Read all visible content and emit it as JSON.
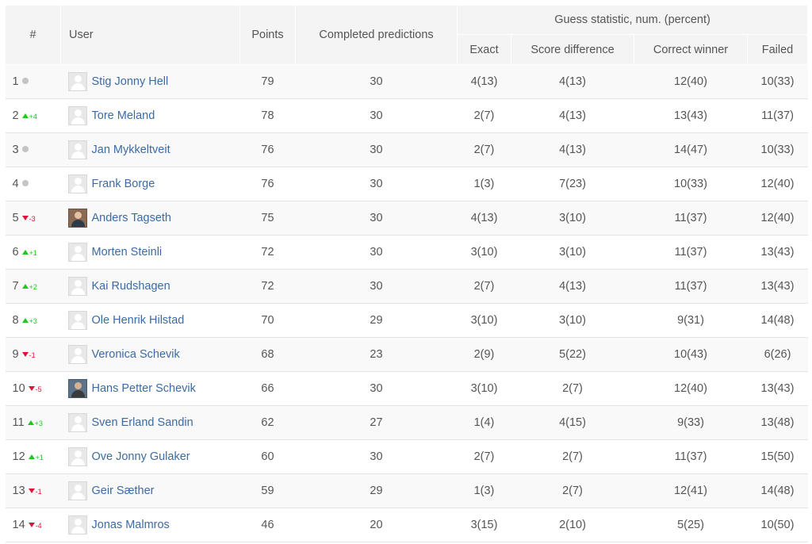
{
  "headers": {
    "rank": "#",
    "user": "User",
    "points": "Points",
    "completed": "Completed predictions",
    "guess_group": "Guess statistic, num. (percent)",
    "exact": "Exact",
    "score_diff": "Score difference",
    "correct_winner": "Correct winner",
    "failed": "Failed"
  },
  "colors": {
    "up": "#1ec91e",
    "down": "#d9163b",
    "same": "#c4c4c4",
    "link": "#3b6ba5"
  },
  "rows": [
    {
      "rank": "1",
      "trend": "same",
      "change": "",
      "avatar": "default-avatar-icon",
      "name": "Stig Jonny Hell",
      "points": "79",
      "completed": "30",
      "exact": "4(13)",
      "score_diff": "4(13)",
      "correct_winner": "12(40)",
      "failed": "10(33)"
    },
    {
      "rank": "2",
      "trend": "up",
      "change": "+4",
      "avatar": "default-avatar-icon",
      "name": "Tore Meland",
      "points": "78",
      "completed": "30",
      "exact": "2(7)",
      "score_diff": "4(13)",
      "correct_winner": "13(43)",
      "failed": "11(37)"
    },
    {
      "rank": "3",
      "trend": "same",
      "change": "",
      "avatar": "default-avatar-icon",
      "name": "Jan Mykkeltveit",
      "points": "76",
      "completed": "30",
      "exact": "2(7)",
      "score_diff": "4(13)",
      "correct_winner": "14(47)",
      "failed": "10(33)"
    },
    {
      "rank": "4",
      "trend": "same",
      "change": "",
      "avatar": "default-avatar-icon",
      "name": "Frank Borge",
      "points": "76",
      "completed": "30",
      "exact": "1(3)",
      "score_diff": "7(23)",
      "correct_winner": "10(33)",
      "failed": "12(40)"
    },
    {
      "rank": "5",
      "trend": "down",
      "change": "-3",
      "avatar": "photo-avatar-icon",
      "name": "Anders Tagseth",
      "points": "75",
      "completed": "30",
      "exact": "4(13)",
      "score_diff": "3(10)",
      "correct_winner": "11(37)",
      "failed": "12(40)"
    },
    {
      "rank": "6",
      "trend": "up",
      "change": "+1",
      "avatar": "default-avatar-icon",
      "name": "Morten Steinli",
      "points": "72",
      "completed": "30",
      "exact": "3(10)",
      "score_diff": "3(10)",
      "correct_winner": "11(37)",
      "failed": "13(43)"
    },
    {
      "rank": "7",
      "trend": "up",
      "change": "+2",
      "avatar": "default-avatar-icon",
      "name": "Kai Rudshagen",
      "points": "72",
      "completed": "30",
      "exact": "2(7)",
      "score_diff": "4(13)",
      "correct_winner": "11(37)",
      "failed": "13(43)"
    },
    {
      "rank": "8",
      "trend": "up",
      "change": "+3",
      "avatar": "default-avatar-icon",
      "name": "Ole Henrik Hilstad",
      "points": "70",
      "completed": "29",
      "exact": "3(10)",
      "score_diff": "3(10)",
      "correct_winner": "9(31)",
      "failed": "14(48)"
    },
    {
      "rank": "9",
      "trend": "down",
      "change": "-1",
      "avatar": "default-avatar-icon",
      "name": "Veronica Schevik",
      "points": "68",
      "completed": "23",
      "exact": "2(9)",
      "score_diff": "5(22)",
      "correct_winner": "10(43)",
      "failed": "6(26)"
    },
    {
      "rank": "10",
      "trend": "down",
      "change": "-5",
      "avatar": "photo2-avatar-icon",
      "name": "Hans Petter Schevik",
      "points": "66",
      "completed": "30",
      "exact": "3(10)",
      "score_diff": "2(7)",
      "correct_winner": "12(40)",
      "failed": "13(43)"
    },
    {
      "rank": "11",
      "trend": "up",
      "change": "+3",
      "avatar": "default-avatar-icon",
      "name": "Sven Erland Sandin",
      "points": "62",
      "completed": "27",
      "exact": "1(4)",
      "score_diff": "4(15)",
      "correct_winner": "9(33)",
      "failed": "13(48)"
    },
    {
      "rank": "12",
      "trend": "up",
      "change": "+1",
      "avatar": "default-avatar-icon",
      "name": "Ove Jonny Gulaker",
      "points": "60",
      "completed": "30",
      "exact": "2(7)",
      "score_diff": "2(7)",
      "correct_winner": "11(37)",
      "failed": "15(50)"
    },
    {
      "rank": "13",
      "trend": "down",
      "change": "-1",
      "avatar": "default-avatar-icon",
      "name": "Geir Sæther",
      "points": "59",
      "completed": "29",
      "exact": "1(3)",
      "score_diff": "2(7)",
      "correct_winner": "12(41)",
      "failed": "14(48)"
    },
    {
      "rank": "14",
      "trend": "down",
      "change": "-4",
      "avatar": "default-avatar-icon",
      "name": "Jonas Malmros",
      "points": "46",
      "completed": "20",
      "exact": "3(15)",
      "score_diff": "2(10)",
      "correct_winner": "5(25)",
      "failed": "10(50)"
    }
  ]
}
